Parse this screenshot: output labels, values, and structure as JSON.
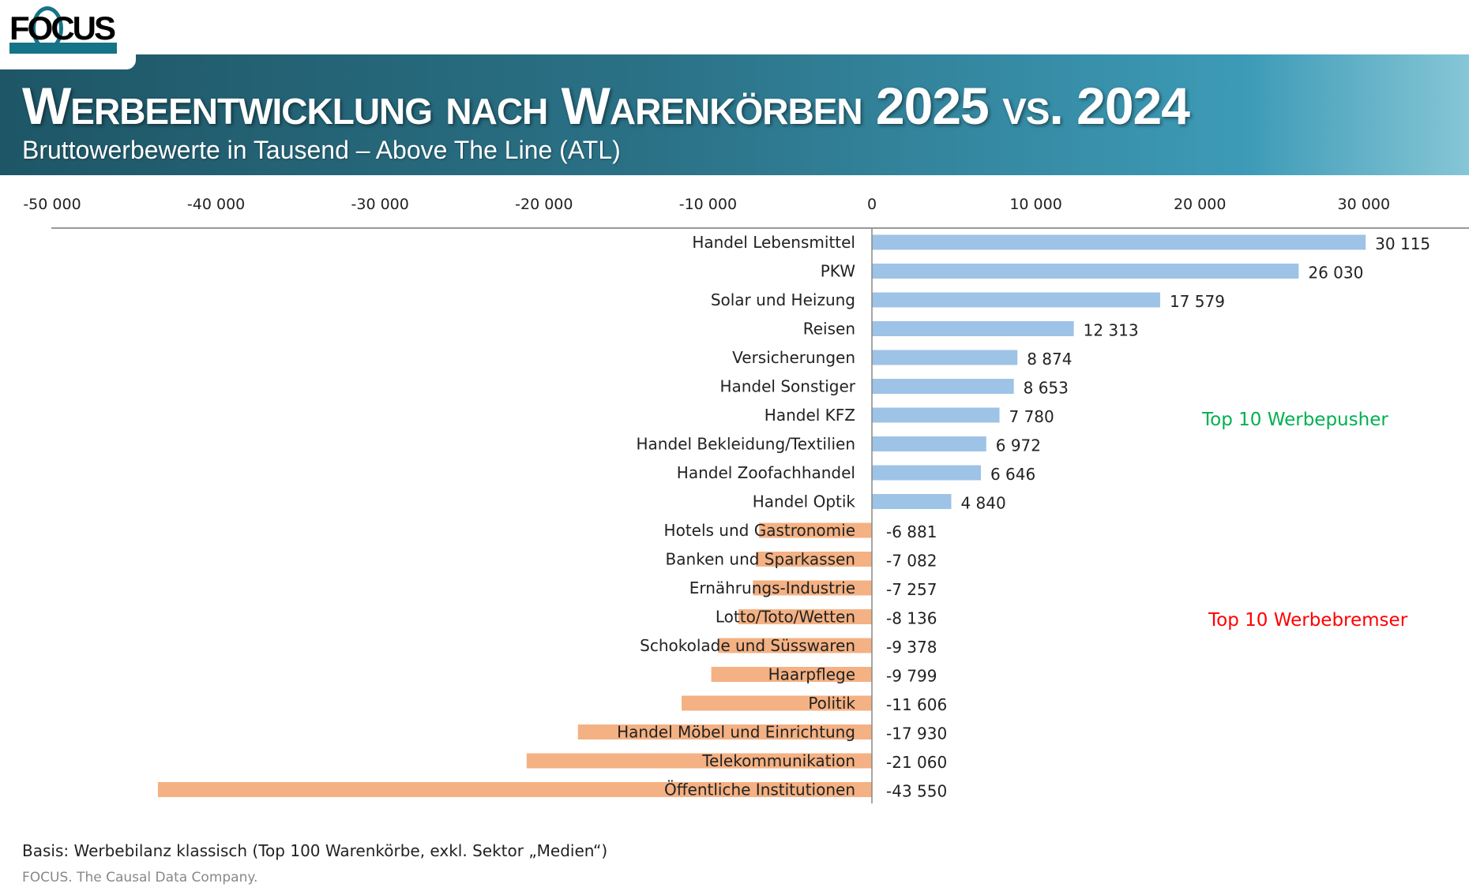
{
  "logo": {
    "text": "FOCUS",
    "brand_color": "#157487"
  },
  "header": {
    "title": "Werbeentwicklung nach Warenkörben 2025 vs. 2024",
    "subtitle": "Bruttowerbewerte in Tausend – Above The Line (ATL)"
  },
  "chart_data": {
    "type": "bar",
    "orientation": "horizontal",
    "title": "Werbeentwicklung nach Warenkörben 2025 vs. 2024",
    "subtitle": "Bruttowerbewerte in Tausend – Above The Line (ATL)",
    "xlim": [
      -50000,
      35000
    ],
    "xticks": [
      -50000,
      -40000,
      -30000,
      -20000,
      -10000,
      0,
      10000,
      20000,
      30000
    ],
    "xtick_labels": [
      "-50 000",
      "-40 000",
      "-30 000",
      "-20 000",
      "-10 000",
      "0",
      "10 000",
      "20 000",
      "30 000"
    ],
    "xaxis_position": "top",
    "grid": false,
    "categories": [
      "Handel Lebensmittel",
      "PKW",
      "Solar und Heizung",
      "Reisen",
      "Versicherungen",
      "Handel Sonstiger",
      "Handel KFZ",
      "Handel Bekleidung/Textilien",
      "Handel Zoofachhandel",
      "Handel Optik",
      "Hotels und Gastronomie",
      "Banken und Sparkassen",
      "Ernährungs-Industrie",
      "Lotto/Toto/Wetten",
      "Schokolade und Süsswaren",
      "Haarpflege",
      "Politik",
      "Handel Möbel und Einrichtung",
      "Telekommunikation",
      "Öffentliche Institutionen"
    ],
    "values": [
      30115,
      26030,
      17579,
      12313,
      8874,
      8653,
      7780,
      6972,
      6646,
      4840,
      -6881,
      -7082,
      -7257,
      -8136,
      -9378,
      -9799,
      -11606,
      -17930,
      -21060,
      -43550
    ],
    "value_labels": [
      "30 115",
      "26 030",
      "17 579",
      "12 313",
      "8 874",
      "8 653",
      "7 780",
      "6 972",
      "6 646",
      "4 840",
      "-6 881",
      "-7 082",
      "-7 257",
      "-8 136",
      "-9 378",
      "-9 799",
      "-11 606",
      "-17 930",
      "-21 060",
      "-43 550"
    ],
    "colors": {
      "positive": "#9dc3e6",
      "negative": "#f4b183"
    },
    "annotations": [
      {
        "text": "Top 10 Werbepusher",
        "color": "#00b050"
      },
      {
        "text": "Top 10 Werbebremser",
        "color": "#ff0000"
      }
    ]
  },
  "footer": {
    "basis": "Basis: Werbebilanz klassisch (Top 100 Warenkörbe, exkl. Sektor „Medien“)",
    "credit": "FOCUS. The Causal Data Company."
  }
}
